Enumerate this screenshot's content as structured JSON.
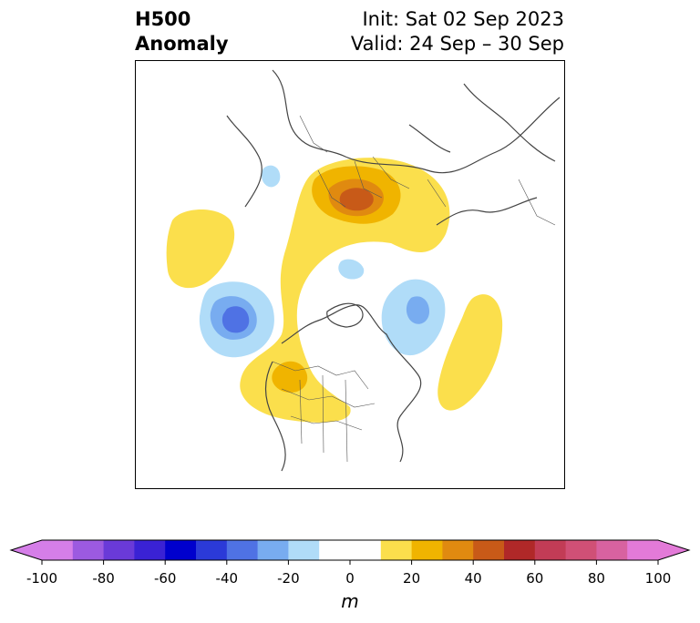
{
  "title": {
    "left_line1": "H500",
    "left_line2": "Anomaly",
    "right_line1": "Init: Sat 02 Sep 2023",
    "right_line2": "Valid: 24 Sep – 30 Sep"
  },
  "colorbar": {
    "unit": "m",
    "ticks": [
      "-100",
      "-80",
      "-60",
      "-40",
      "-20",
      "0",
      "20",
      "40",
      "60",
      "80",
      "100"
    ],
    "colors": [
      "#d57ee8",
      "#9c5ae0",
      "#6a3ad8",
      "#3a22d4",
      "#0000cd",
      "#2b3ad8",
      "#4f72e4",
      "#78acf0",
      "#b0dcf8",
      "#ffffff",
      "#ffffff",
      "#fbdf4c",
      "#f0b400",
      "#e08a10",
      "#c85a18",
      "#b02828",
      "#c23c56",
      "#d05076",
      "#d862a0",
      "#e37ad8"
    ],
    "extend_low": "#d57ee8",
    "extend_high": "#e37ad8"
  },
  "map": {
    "projection": "north-polar-stereographic",
    "field": "500 hPa geopotential height anomaly"
  }
}
